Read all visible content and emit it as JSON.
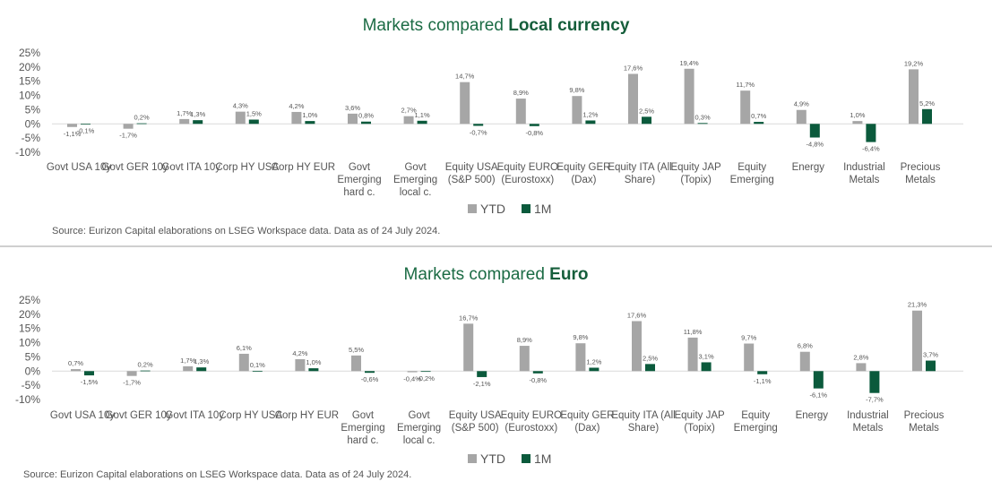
{
  "colors": {
    "ytd": "#a6a6a6",
    "m1": "#0b5a3c",
    "title": "#1b6b44",
    "text": "#555555"
  },
  "chart_data": [
    {
      "type": "bar",
      "title_prefix": "Markets compared",
      "title_bold": "Local currency",
      "ylim": [
        -10,
        25
      ],
      "yticks": [
        "25%",
        "20%",
        "15%",
        "10%",
        "5%",
        "0%",
        "-5%",
        "-10%"
      ],
      "categories": [
        [
          "Govt USA 10y"
        ],
        [
          "Govt GER 10y"
        ],
        [
          "Govt ITA 10y"
        ],
        [
          "Corp HY USA"
        ],
        [
          "Corp HY EUR"
        ],
        [
          "Govt",
          "Emerging",
          "hard c."
        ],
        [
          "Govt",
          "Emerging",
          "local c."
        ],
        [
          "Equity USA",
          "(S&P 500)"
        ],
        [
          "Equity EURO",
          "(Eurostoxx)"
        ],
        [
          "Equity GER",
          "(Dax)"
        ],
        [
          "Equity ITA (All",
          "Share)"
        ],
        [
          "Equity JAP",
          "(Topix)"
        ],
        [
          "Equity",
          "Emerging"
        ],
        [
          "Energy"
        ],
        [
          "Industrial",
          "Metals"
        ],
        [
          "Precious",
          "Metals"
        ]
      ],
      "series": [
        {
          "name": "YTD",
          "values": [
            -1.1,
            -1.7,
            1.7,
            4.3,
            4.2,
            3.6,
            2.7,
            14.7,
            8.9,
            9.8,
            17.6,
            19.4,
            11.7,
            4.9,
            1.0,
            19.2
          ],
          "labels": [
            "-1,1%",
            "-1,7%",
            "1,7%",
            "4,3%",
            "4,2%",
            "3,6%",
            "2,7%",
            "14,7%",
            "8,9%",
            "9,8%",
            "17,6%",
            "19,4%",
            "11,7%",
            "4,9%",
            "1,0%",
            "19,2%"
          ]
        },
        {
          "name": "1M",
          "values": [
            -0.1,
            0.2,
            1.3,
            1.5,
            1.0,
            0.8,
            1.1,
            -0.7,
            -0.8,
            1.2,
            2.5,
            0.3,
            0.7,
            -4.8,
            -6.4,
            5.2
          ],
          "labels": [
            "-0,1%",
            "0,2%",
            "1,3%",
            "1,5%",
            "1,0%",
            "0,8%",
            "1,1%",
            "-0,7%",
            "-0,8%",
            "1,2%",
            "2,5%",
            "0,3%",
            "0,7%",
            "-4,8%",
            "-6,4%",
            "5,2%"
          ]
        }
      ],
      "legend": [
        "YTD",
        "1M"
      ],
      "source": "Source: Eurizon Capital elaborations on LSEG Workspace data. Data as of  24 July 2024."
    },
    {
      "type": "bar",
      "title_prefix": "Markets compared",
      "title_bold": "Euro",
      "ylim": [
        -10,
        25
      ],
      "yticks": [
        "25%",
        "20%",
        "15%",
        "10%",
        "5%",
        "0%",
        "-5%",
        "-10%"
      ],
      "categories": [
        [
          "Govt USA 10y"
        ],
        [
          "Govt GER 10y"
        ],
        [
          "Govt ITA 10y"
        ],
        [
          "Corp HY USA"
        ],
        [
          "Corp HY EUR"
        ],
        [
          "Govt",
          "Emerging",
          "hard c."
        ],
        [
          "Govt",
          "Emerging",
          "local c."
        ],
        [
          "Equity USA",
          "(S&P 500)"
        ],
        [
          "Equity EURO",
          "(Eurostoxx)"
        ],
        [
          "Equity GER",
          "(Dax)"
        ],
        [
          "Equity ITA (All",
          "Share)"
        ],
        [
          "Equity JAP",
          "(Topix)"
        ],
        [
          "Equity",
          "Emerging"
        ],
        [
          "Energy"
        ],
        [
          "Industrial",
          "Metals"
        ],
        [
          "Precious",
          "Metals"
        ]
      ],
      "series": [
        {
          "name": "YTD",
          "values": [
            0.7,
            -1.7,
            1.7,
            6.1,
            4.2,
            5.5,
            -0.4,
            16.7,
            8.9,
            9.8,
            17.6,
            11.8,
            9.7,
            6.8,
            2.8,
            21.3
          ],
          "labels": [
            "0,7%",
            "-1,7%",
            "1,7%",
            "6,1%",
            "4,2%",
            "5,5%",
            "-0,4%",
            "16,7%",
            "8,9%",
            "9,8%",
            "17,6%",
            "11,8%",
            "9,7%",
            "6,8%",
            "2,8%",
            "21,3%"
          ]
        },
        {
          "name": "1M",
          "values": [
            -1.5,
            0.2,
            1.3,
            0.1,
            1.0,
            -0.6,
            -0.2,
            -2.1,
            -0.8,
            1.2,
            2.5,
            3.1,
            -1.1,
            -6.1,
            -7.7,
            3.7
          ],
          "labels": [
            "-1,5%",
            "0,2%",
            "1,3%",
            "0,1%",
            "1,0%",
            "-0,6%",
            "-0,2%",
            "-2,1%",
            "-0,8%",
            "1,2%",
            "2,5%",
            "3,1%",
            "-1,1%",
            "-6,1%",
            "-7,7%",
            "3,7%"
          ]
        }
      ],
      "legend": [
        "YTD",
        "1M"
      ],
      "source": "Source: Eurizon Capital elaborations on LSEG Workspace data. Data as of  24 July 2024."
    }
  ]
}
